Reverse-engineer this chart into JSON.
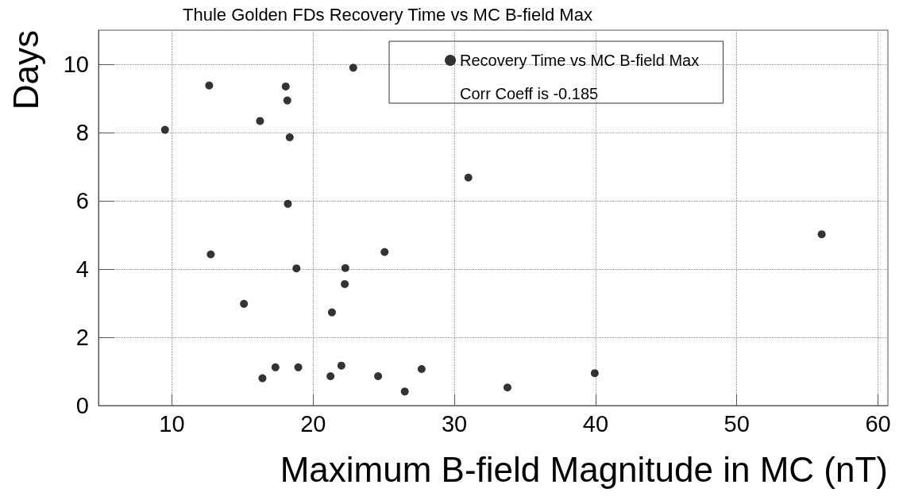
{
  "chart_data": {
    "type": "scatter",
    "title": "Thule Golden FDs Recovery Time vs MC B-field Max",
    "xlabel": "Maximum B-field Magnitude in MC (nT)",
    "ylabel": "Days",
    "annotations": [
      "Corr Coeff is -0.185"
    ],
    "x": [
      9.51,
      12.64,
      18.06,
      18.17,
      16.24,
      18.34,
      18.21,
      12.75,
      18.82,
      22.28,
      22.24,
      15.1,
      21.33,
      17.33,
      18.95,
      16.41,
      21.23,
      22.0,
      24.6,
      26.49,
      27.68,
      22.84,
      25.06,
      30.99,
      33.76,
      39.94,
      56.01
    ],
    "series": [
      {
        "name": "Recovery Time vs MC B-field Max",
        "color": "#000000",
        "values": [
          8.08,
          9.38,
          9.35,
          8.94,
          8.34,
          7.86,
          5.91,
          4.43,
          4.02,
          4.03,
          3.56,
          2.98,
          2.73,
          1.12,
          1.12,
          0.8,
          0.86,
          1.17,
          0.86,
          0.41,
          1.07,
          9.9,
          4.5,
          6.68,
          0.53,
          0.95,
          5.02
        ]
      }
    ],
    "xlim": [
      4.8,
      60.7
    ],
    "xticks": [
      10,
      20,
      30,
      40,
      50,
      60
    ],
    "ylim": [
      0,
      11
    ],
    "yticks": [
      0,
      2,
      4,
      6,
      8,
      10
    ],
    "grid": true,
    "legend": "top right",
    "marker": "circle"
  }
}
